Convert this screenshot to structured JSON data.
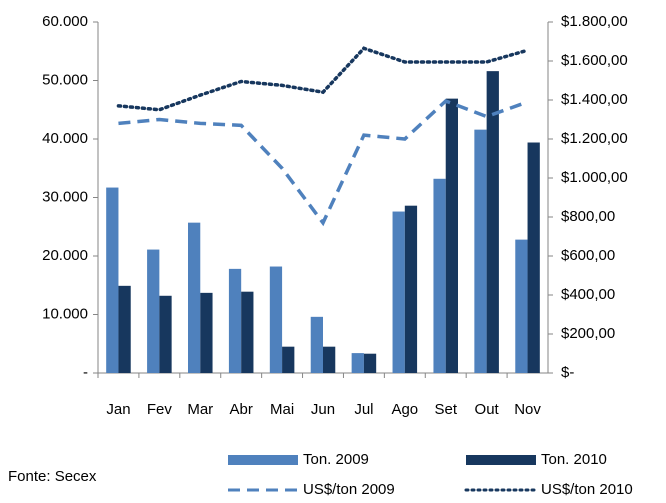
{
  "chart_data": {
    "type": "bar-line",
    "categories": [
      "Jan",
      "Fev",
      "Mar",
      "Abr",
      "Mai",
      "Jun",
      "Jul",
      "Ago",
      "Set",
      "Out",
      "Nov"
    ],
    "series": [
      {
        "name": "Ton. 2009",
        "type": "bar",
        "color": "#4f81bd",
        "values": [
          31700,
          21100,
          25700,
          17800,
          18200,
          9600,
          3400,
          27600,
          33200,
          41600,
          22800
        ]
      },
      {
        "name": "Ton. 2010",
        "type": "bar",
        "color": "#17375e",
        "values": [
          14900,
          13200,
          13700,
          13900,
          4500,
          4500,
          3300,
          28600,
          46900,
          51600,
          39400
        ]
      },
      {
        "name": "US$/ton 2009",
        "type": "line",
        "style": "dashed",
        "axis": "y2",
        "color": "#4f81bd",
        "values": [
          1280,
          1300,
          1280,
          1270,
          1050,
          770,
          1220,
          1200,
          1395,
          1315,
          1390
        ]
      },
      {
        "name": "US$/ton 2010",
        "type": "line",
        "style": "dotted",
        "axis": "y2",
        "color": "#17375e",
        "values": [
          1370,
          1350,
          1425,
          1495,
          1475,
          1440,
          1665,
          1595,
          1595,
          1595,
          1655
        ]
      }
    ],
    "ylim": [
      0,
      60000
    ],
    "yticks": [
      {
        "value": 0,
        "label": "-"
      },
      {
        "value": 10000,
        "label": "10.000"
      },
      {
        "value": 20000,
        "label": "20.000"
      },
      {
        "value": 30000,
        "label": "30.000"
      },
      {
        "value": 40000,
        "label": "40.000"
      },
      {
        "value": 50000,
        "label": "50.000"
      },
      {
        "value": 60000,
        "label": "60.000"
      }
    ],
    "y2lim": [
      0,
      1800
    ],
    "y2ticks": [
      {
        "value": 0,
        "label": "$-"
      },
      {
        "value": 200,
        "label": "$200,00"
      },
      {
        "value": 400,
        "label": "$400,00"
      },
      {
        "value": 600,
        "label": "$600,00"
      },
      {
        "value": 800,
        "label": "$800,00"
      },
      {
        "value": 1000,
        "label": "$1.000,00"
      },
      {
        "value": 1200,
        "label": "$1.200,00"
      },
      {
        "value": 1400,
        "label": "$1.400,00"
      },
      {
        "value": 1600,
        "label": "$1.600,00"
      },
      {
        "value": 1800,
        "label": "$1.800,00"
      }
    ],
    "legend": "bottom",
    "note": "Fonte: Secex"
  }
}
